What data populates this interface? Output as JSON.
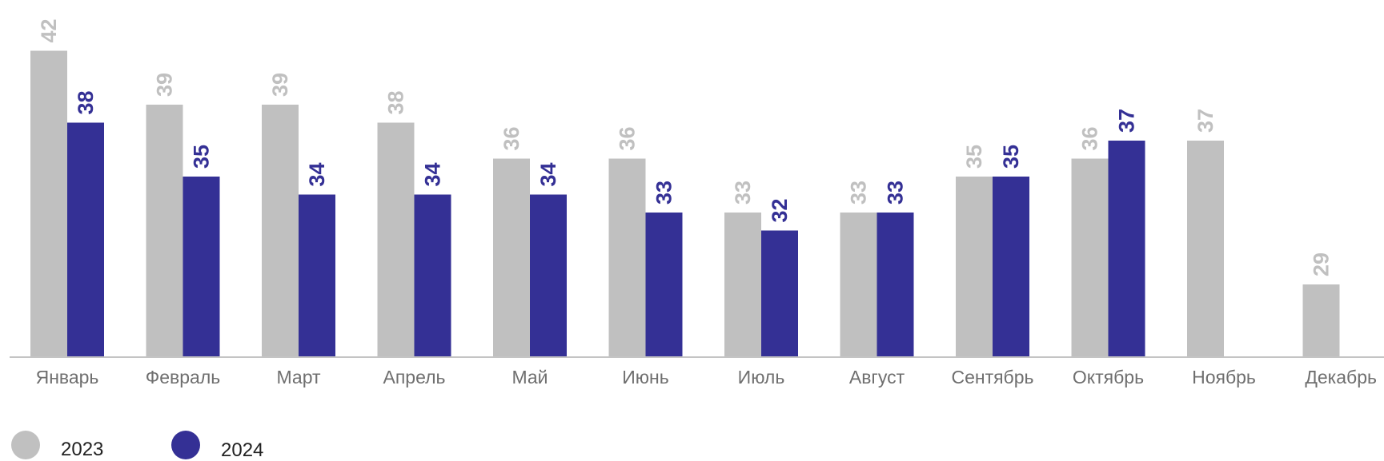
{
  "chart_data": {
    "type": "bar",
    "categories": [
      "Январь",
      "Февраль",
      "Март",
      "Апрель",
      "Май",
      "Июнь",
      "Июль",
      "Август",
      "Сентябрь",
      "Октябрь",
      "Ноябрь",
      "Декабрь"
    ],
    "series": [
      {
        "name": "2023",
        "color": "#c0c0c0",
        "values": [
          42,
          39,
          39,
          38,
          36,
          36,
          33,
          33,
          35,
          36,
          37,
          29
        ]
      },
      {
        "name": "2024",
        "color": "#343095",
        "values": [
          38,
          35,
          34,
          34,
          34,
          33,
          32,
          33,
          35,
          37,
          null,
          null
        ]
      }
    ],
    "title": "",
    "xlabel": "",
    "ylabel": "",
    "ylim": [
      25,
      42
    ],
    "grid": false,
    "legend_position": "bottom-left",
    "data_labels": "rotated"
  }
}
